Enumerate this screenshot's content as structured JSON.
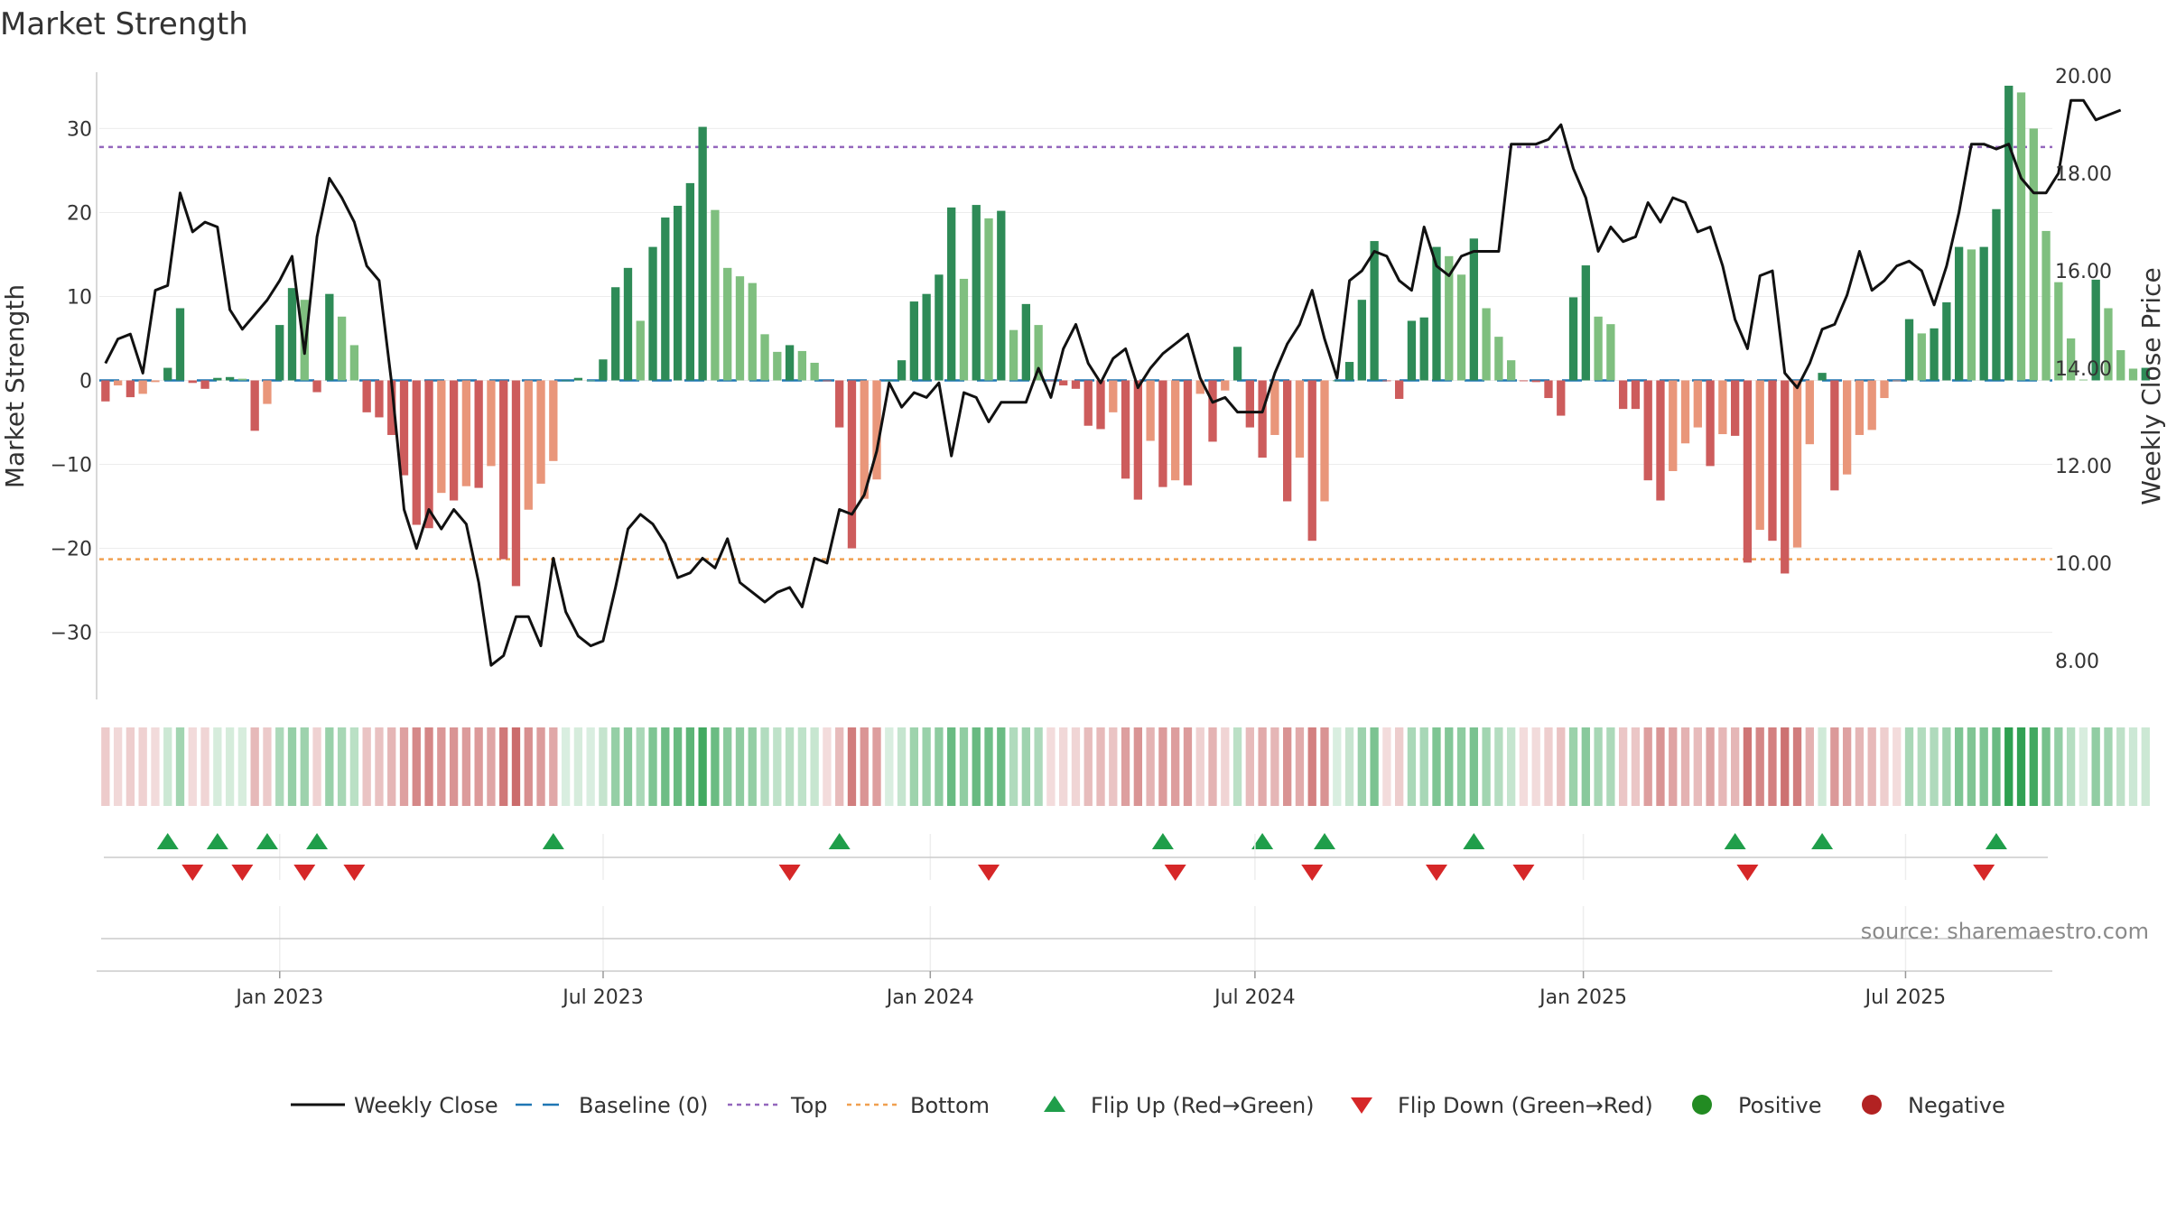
{
  "chart_data": {
    "type": "bar",
    "title": "Market Strength",
    "ylabel": "Market Strength",
    "y2label": "Weekly Close Price",
    "ylim": [
      -38,
      38
    ],
    "y2lim": [
      7.2,
      20.3
    ],
    "y_ticks": [
      30,
      20,
      10,
      0,
      -10,
      -20,
      -30
    ],
    "y_tick_labels": [
      "30",
      "20",
      "10",
      "0",
      "−10",
      "−20",
      "−30"
    ],
    "y2_ticks": [
      20,
      18,
      16,
      14,
      12,
      10,
      8
    ],
    "y2_tick_labels": [
      "20.00",
      "18.00",
      "16.00",
      "14.00",
      "12.00",
      "10.00",
      "8.00"
    ],
    "top_line": 27.8,
    "bottom_line": -21.3,
    "x_start_week": 0,
    "x_end_week": 157,
    "x_ticks": [
      {
        "week": 14.5,
        "label": "Jan 2023"
      },
      {
        "week": 40.5,
        "label": "Jul 2023"
      },
      {
        "week": 66.8,
        "label": "Jan 2024"
      },
      {
        "week": 92.9,
        "label": "Jul 2024"
      },
      {
        "week": 119.3,
        "label": "Jan 2025"
      },
      {
        "week": 145.2,
        "label": "Jul 2025"
      }
    ],
    "strength": [
      -2.5,
      -0.6,
      -2,
      -1.6,
      -0.2,
      1.5,
      8.6,
      -0.3,
      -1,
      0.3,
      0.4,
      0.2,
      -6,
      -2.8,
      6.6,
      11,
      9.6,
      -1.4,
      10.3,
      7.6,
      4.2,
      -3.8,
      -4.4,
      -6.5,
      -11.3,
      -17.2,
      -17.6,
      -13.4,
      -14.3,
      -12.6,
      -12.8,
      -10.2,
      -21.3,
      -24.5,
      -15.4,
      -12.3,
      -9.6,
      0,
      0.3,
      0,
      2.5,
      11.1,
      13.4,
      7.1,
      15.9,
      19.4,
      20.8,
      23.5,
      30.2,
      20.3,
      13.4,
      12.4,
      11.6,
      5.5,
      3.4,
      4.2,
      3.5,
      2.1,
      -0.1,
      -5.6,
      -20,
      -14.1,
      -11.8,
      0,
      2.4,
      9.4,
      10.3,
      12.6,
      20.6,
      12.1,
      20.9,
      19.3,
      20.2,
      6,
      9.1,
      6.6,
      -0.1,
      -0.6,
      -1,
      -5.4,
      -5.8,
      -3.8,
      -11.7,
      -14.2,
      -7.2,
      -12.7,
      -11.9,
      -12.5,
      -1.6,
      -7.3,
      -1.2,
      4,
      -5.6,
      -9.2,
      -6.5,
      -14.4,
      -9.2,
      -19.1,
      -14.4,
      0,
      2.2,
      9.6,
      16.6,
      -0.1,
      -2.2,
      7.1,
      7.5,
      15.9,
      14.8,
      12.6,
      16.9,
      8.6,
      5.2,
      2.4,
      -0.1,
      -0.2,
      -2.1,
      -4.2,
      9.9,
      13.7,
      7.6,
      6.7,
      -3.4,
      -3.4,
      -11.9,
      -14.3,
      -10.8,
      -7.5,
      -5.6,
      -10.2,
      -6.4,
      -6.6,
      -21.7,
      -17.8,
      -19.1,
      -23,
      -19.9,
      -7.6,
      0.9,
      -13.1,
      -11.2,
      -6.5,
      -5.9,
      -2.1,
      -0.1,
      7.3,
      5.6,
      6.2,
      9.3,
      15.9,
      15.6,
      15.9,
      20.4,
      35.1,
      34.3,
      30,
      17.8,
      11.7,
      5,
      0.1,
      12,
      8.6,
      3.6,
      1.4,
      1.5
    ],
    "weekly_close": [
      14.1,
      14.6,
      14.7,
      13.9,
      15.6,
      15.7,
      17.6,
      16.8,
      17,
      16.9,
      15.2,
      14.8,
      15.1,
      15.4,
      15.8,
      16.3,
      14.3,
      16.7,
      17.9,
      17.5,
      17,
      16.1,
      15.8,
      13.7,
      11.1,
      10.3,
      11.1,
      10.7,
      11.1,
      10.8,
      9.6,
      7.9,
      8.1,
      8.9,
      8.9,
      8.3,
      10.1,
      9,
      8.5,
      8.3,
      8.4,
      9.5,
      10.7,
      11,
      10.8,
      10.4,
      9.7,
      9.8,
      10.1,
      9.9,
      10.5,
      9.6,
      9.4,
      9.2,
      9.4,
      9.5,
      9.1,
      10.1,
      10,
      11.1,
      11,
      11.4,
      12.3,
      13.7,
      13.2,
      13.5,
      13.4,
      13.7,
      12.2,
      13.5,
      13.4,
      12.9,
      13.3,
      13.3,
      13.3,
      14,
      13.4,
      14.4,
      14.9,
      14.1,
      13.7,
      14.2,
      14.4,
      13.6,
      14,
      14.3,
      14.5,
      14.7,
      13.8,
      13.3,
      13.4,
      13.1,
      13.1,
      13.1,
      13.9,
      14.5,
      14.9,
      15.6,
      14.6,
      13.8,
      15.8,
      16,
      16.4,
      16.3,
      15.8,
      15.6,
      16.9,
      16.1,
      15.9,
      16.3,
      16.4,
      16.4,
      16.4,
      18.6,
      18.6,
      18.6,
      18.7,
      19,
      18.1,
      17.5,
      16.4,
      16.9,
      16.6,
      16.7,
      17.4,
      17,
      17.5,
      17.4,
      16.8,
      16.9,
      16.1,
      15,
      14.4,
      15.9,
      16,
      13.9,
      13.6,
      14.1,
      14.8,
      14.9,
      15.5,
      16.4,
      15.6,
      15.8,
      16.1,
      16.2,
      16,
      15.3,
      16.1,
      17.2,
      18.6,
      18.6,
      18.5,
      18.6,
      17.9,
      17.6,
      17.6,
      18,
      19.5,
      19.5,
      19.1,
      19.2,
      19.3
    ],
    "positive_color": "#2e8b57",
    "positive_light_color": "#7fbf7f",
    "negative_color": "#cd5c5c",
    "negative_light_color": "#e9967a",
    "top_color": "#9467bd",
    "bottom_color": "#f0a050",
    "baseline_color": "#1f77b4",
    "close_color": "#111111",
    "flip_up_color": "#1f9e4a",
    "flip_down_color": "#d62728",
    "flip_up_weeks": [
      5,
      9,
      13,
      17,
      36,
      59,
      85,
      93,
      98,
      110,
      131,
      138,
      152
    ],
    "flip_down_weeks": [
      7,
      11,
      16,
      20,
      55,
      71,
      86,
      97,
      107,
      114,
      132,
      151
    ],
    "legend": [
      {
        "label": "Weekly Close",
        "symbol": "line",
        "color": "#111111"
      },
      {
        "label": "Baseline (0)",
        "symbol": "dash",
        "color": "#1f77b4"
      },
      {
        "label": "Top",
        "symbol": "dot",
        "color": "#9467bd"
      },
      {
        "label": "Bottom",
        "symbol": "dot",
        "color": "#f0a050"
      },
      {
        "label": "Flip Up (Red→Green)",
        "symbol": "triangle-up",
        "color": "#1f9e4a"
      },
      {
        "label": "Flip Down (Green→Red)",
        "symbol": "triangle-down",
        "color": "#d62728"
      },
      {
        "label": "Positive",
        "symbol": "circle",
        "color": "#228b22"
      },
      {
        "label": "Negative",
        "symbol": "circle",
        "color": "#b22222"
      }
    ],
    "source": "source: sharemaestro.com"
  }
}
